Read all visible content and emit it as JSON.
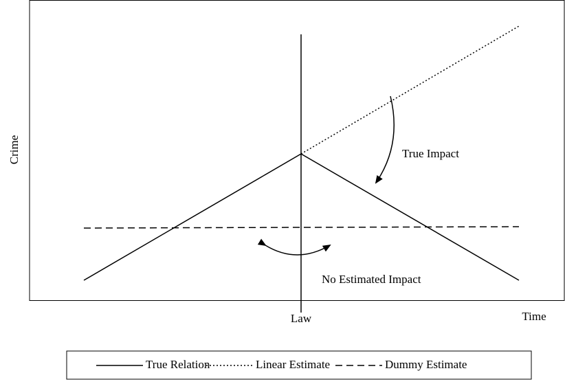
{
  "axes": {
    "y_label": "Crime",
    "x_label": "Time",
    "x_marker": "Law"
  },
  "annotations": {
    "true_impact": "True Impact",
    "no_estimated_impact": "No Estimated Impact"
  },
  "legend": [
    "True Relation",
    "Linear Estimate",
    "Dummy Estimate"
  ]
}
